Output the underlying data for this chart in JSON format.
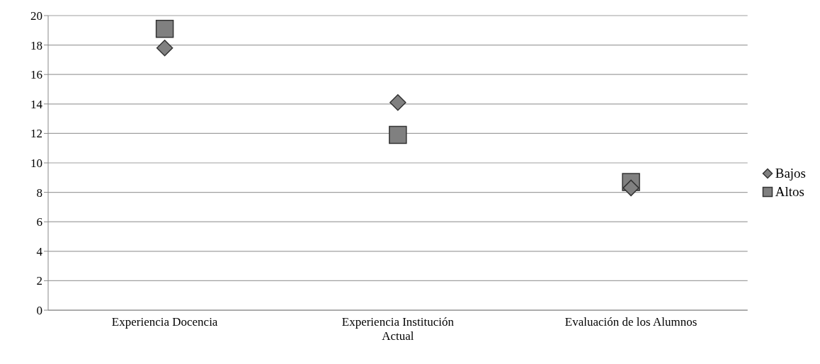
{
  "chart_data": {
    "type": "scatter",
    "categories": [
      "Experiencia Docencia",
      "Experiencia Institución Actual",
      "Evaluación de los Alumnos"
    ],
    "series": [
      {
        "name": "Bajos",
        "color": "#808080",
        "marker": "diamond",
        "values": [
          17.8,
          14.1,
          8.3
        ]
      },
      {
        "name": "Altos",
        "color": "#808080",
        "marker": "square",
        "values": [
          19.1,
          11.9,
          8.7
        ]
      }
    ],
    "ylim": [
      0,
      20
    ],
    "yticks": [
      0,
      2,
      4,
      6,
      8,
      10,
      12,
      14,
      16,
      18,
      20
    ],
    "grid": "y",
    "legend": "right"
  }
}
